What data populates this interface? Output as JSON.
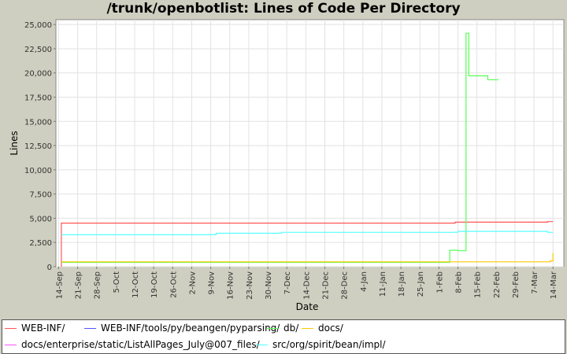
{
  "chart_data": {
    "type": "line",
    "title": "/trunk/openbotlist: Lines of Code Per Directory",
    "xlabel": "Date",
    "ylabel": "Lines",
    "ylim": [
      0,
      25500
    ],
    "yticks": [
      0,
      2500,
      5000,
      7500,
      10000,
      12500,
      15000,
      17500,
      20000,
      22500,
      25000
    ],
    "ytick_labels": [
      "0",
      "2,500",
      "5,000",
      "7,500",
      "10,000",
      "12,500",
      "15,000",
      "17,500",
      "20,000",
      "22,500",
      "25,000"
    ],
    "xlim": [
      "2007-09-13",
      "2008-03-18"
    ],
    "xticks": [
      "2007-09-14",
      "2007-09-21",
      "2007-09-28",
      "2007-10-05",
      "2007-10-12",
      "2007-10-19",
      "2007-10-26",
      "2007-11-02",
      "2007-11-09",
      "2007-11-16",
      "2007-11-23",
      "2007-11-30",
      "2007-12-07",
      "2007-12-14",
      "2007-12-21",
      "2007-12-28",
      "2008-01-04",
      "2008-01-11",
      "2008-01-18",
      "2008-01-25",
      "2008-02-01",
      "2008-02-08",
      "2008-02-15",
      "2008-02-22",
      "2008-02-29",
      "2008-03-07",
      "2008-03-14"
    ],
    "xtick_labels": [
      "14-Sep",
      "21-Sep",
      "28-Sep",
      "5-Oct",
      "12-Oct",
      "19-Oct",
      "26-Oct",
      "2-Nov",
      "9-Nov",
      "16-Nov",
      "23-Nov",
      "30-Nov",
      "7-Dec",
      "14-Dec",
      "21-Dec",
      "28-Dec",
      "4-Jan",
      "11-Jan",
      "18-Jan",
      "25-Jan",
      "1-Feb",
      "8-Feb",
      "15-Feb",
      "22-Feb",
      "29-Feb",
      "7-Mar",
      "14-Mar"
    ],
    "grid": true,
    "legend_position": "bottom",
    "series": [
      {
        "name": "WEB-INF/",
        "color": "#ff5555",
        "points": [
          [
            "2007-09-15",
            0
          ],
          [
            "2007-09-15",
            4500
          ],
          [
            "2008-02-07",
            4500
          ],
          [
            "2008-02-07",
            4600
          ],
          [
            "2008-03-12",
            4600
          ],
          [
            "2008-03-12",
            4650
          ],
          [
            "2008-03-14",
            4650
          ]
        ]
      },
      {
        "name": "WEB-INF/tools/py/beangen/pyparsing/",
        "color": "#5555ff",
        "points": []
      },
      {
        "name": "db/",
        "color": "#55ff55",
        "points": [
          [
            "2007-09-15",
            450
          ],
          [
            "2008-02-05",
            450
          ],
          [
            "2008-02-05",
            1700
          ],
          [
            "2008-02-08",
            1700
          ],
          [
            "2008-02-08",
            1650
          ],
          [
            "2008-02-11",
            1650
          ],
          [
            "2008-02-11",
            24100
          ],
          [
            "2008-02-12",
            24100
          ],
          [
            "2008-02-12",
            19700
          ],
          [
            "2008-02-19",
            19700
          ],
          [
            "2008-02-19",
            19300
          ],
          [
            "2008-02-23",
            19300
          ]
        ]
      },
      {
        "name": "docs/",
        "color": "#ffc800",
        "points": [
          [
            "2007-09-15",
            500
          ],
          [
            "2008-03-13",
            500
          ],
          [
            "2008-03-13",
            600
          ],
          [
            "2008-03-14",
            600
          ],
          [
            "2008-03-14",
            1400
          ]
        ]
      },
      {
        "name": "docs/enterprise/static/ListAllPages_July@007_files/",
        "color": "#ff55ff",
        "points": []
      },
      {
        "name": "src/org/spirit/bean/impl/",
        "color": "#55ffff",
        "points": [
          [
            "2007-09-15",
            3300
          ],
          [
            "2007-11-11",
            3300
          ],
          [
            "2007-11-11",
            3450
          ],
          [
            "2007-12-05",
            3450
          ],
          [
            "2007-12-05",
            3550
          ],
          [
            "2008-02-08",
            3550
          ],
          [
            "2008-02-08",
            3650
          ],
          [
            "2008-03-12",
            3650
          ],
          [
            "2008-03-12",
            3550
          ],
          [
            "2008-03-14",
            3550
          ]
        ]
      }
    ]
  }
}
